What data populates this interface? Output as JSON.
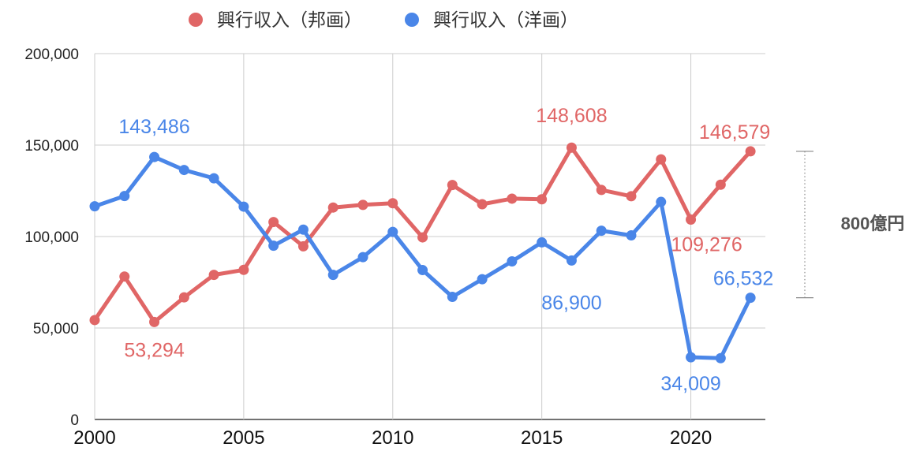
{
  "chart_data": {
    "type": "line",
    "title": "",
    "xlabel": "",
    "ylabel": "",
    "x": [
      2000,
      2001,
      2002,
      2003,
      2004,
      2005,
      2006,
      2007,
      2008,
      2009,
      2010,
      2011,
      2012,
      2013,
      2014,
      2015,
      2016,
      2017,
      2018,
      2019,
      2020,
      2021,
      2022
    ],
    "xlim": [
      2000,
      2022.5
    ],
    "ylim": [
      0,
      200000
    ],
    "x_ticks": [
      "2000",
      "2005",
      "2010",
      "2015",
      "2020"
    ],
    "y_ticks": [
      "0",
      "50,000",
      "100,000",
      "150,000",
      "200,000"
    ],
    "grid": true,
    "legend": "top",
    "series": [
      {
        "name": "興行収入（邦画）",
        "color": "#e06666",
        "values": [
          54334,
          78144,
          53294,
          66744,
          79049,
          81780,
          107944,
          94645,
          115859,
          117309,
          118217,
          99531,
          128181,
          117685,
          120715,
          120367,
          148608,
          125483,
          122029,
          142192,
          109276,
          128339,
          146579
        ]
      },
      {
        "name": "興行収入（洋画）",
        "color": "#4a86e8",
        "values": [
          116528,
          122140,
          143486,
          136387,
          131841,
          116340,
          94990,
          103798,
          79033,
          88726,
          102521,
          81666,
          67009,
          76664,
          86434,
          96804,
          86900,
          103193,
          100621,
          118943,
          34009,
          33524,
          66532
        ]
      }
    ],
    "data_labels": [
      {
        "series": 0,
        "index": 2,
        "text": "53,294"
      },
      {
        "series": 0,
        "index": 16,
        "text": "148,608"
      },
      {
        "series": 0,
        "index": 20,
        "text": "109,276"
      },
      {
        "series": 0,
        "index": 22,
        "text": "146,579"
      },
      {
        "series": 1,
        "index": 2,
        "text": "143,486"
      },
      {
        "series": 1,
        "index": 16,
        "text": "86,900"
      },
      {
        "series": 1,
        "index": 20,
        "text": "34,009"
      },
      {
        "series": 1,
        "index": 22,
        "text": "66,532"
      }
    ],
    "annotation": {
      "text": "800億円",
      "from": 66532,
      "to": 146579
    }
  }
}
